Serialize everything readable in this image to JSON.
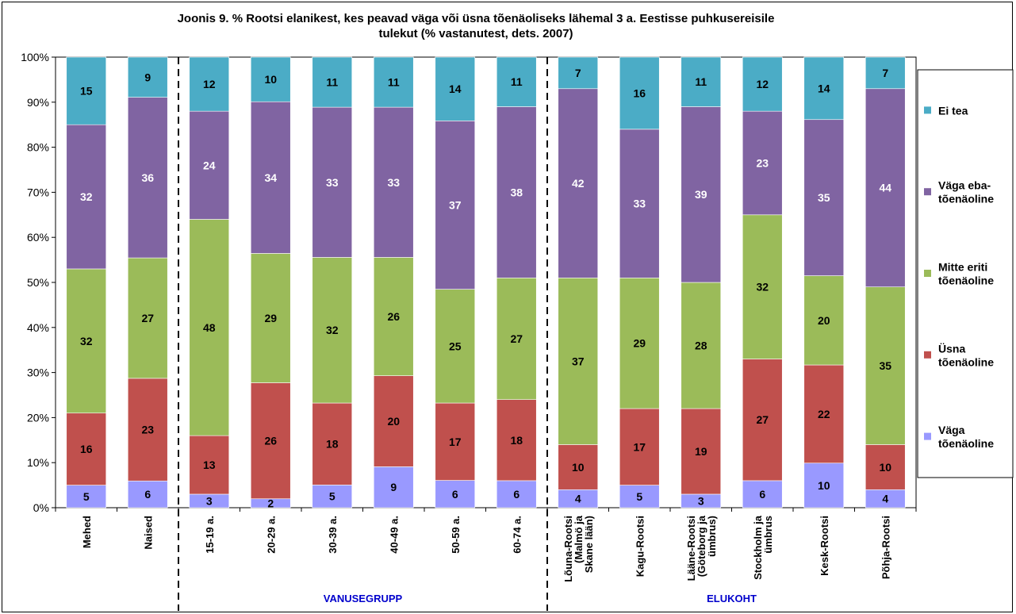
{
  "chart_data": {
    "type": "bar",
    "stacked": true,
    "percent_stacked": true,
    "title_lines": [
      "Joonis 9. % Rootsi elanikest, kes peavad väga või üsna tõenäoliseks lähemal 3 a. Eestisse puhkusereisile",
      "tulekut (% vastanutest, dets. 2007)"
    ],
    "ylim": [
      0,
      100
    ],
    "yticks": [
      "0%",
      "10%",
      "20%",
      "30%",
      "40%",
      "50%",
      "60%",
      "70%",
      "80%",
      "90%",
      "100%"
    ],
    "categories": [
      [
        "Mehed"
      ],
      [
        "Naised"
      ],
      [
        "15-19 a."
      ],
      [
        "20-29 a."
      ],
      [
        "30-39 a."
      ],
      [
        "40-49 a."
      ],
      [
        "50-59 a."
      ],
      [
        "60-74 a."
      ],
      [
        "Lõuna-Rootsi",
        "(Malmö ja",
        "Skane lään)"
      ],
      [
        "Kagu-Rootsi"
      ],
      [
        "Lääne-Rootsi",
        "(Göteborg ja",
        "ümbrus)"
      ],
      [
        "Stockholm ja",
        "ümbrus"
      ],
      [
        "Kesk-Rootsi"
      ],
      [
        "Põhja-Rootsi"
      ]
    ],
    "series": [
      {
        "name": "Väga tõenäoline",
        "legend_lines": [
          "Väga",
          "tõenäoline"
        ],
        "color": "#9999ff",
        "label_color": "#000000",
        "values": [
          5,
          6,
          3,
          2,
          5,
          9,
          6,
          6,
          4,
          5,
          3,
          6,
          10,
          4
        ]
      },
      {
        "name": "Üsna tõenäoline",
        "legend_lines": [
          "Üsna",
          "tõenäoline"
        ],
        "color": "#c0504d",
        "label_color": "#000000",
        "values": [
          16,
          23,
          13,
          26,
          18,
          20,
          17,
          18,
          10,
          17,
          19,
          27,
          22,
          10
        ]
      },
      {
        "name": "Mitte eriti tõenäoline",
        "legend_lines": [
          "Mitte eriti",
          "tõenäoline"
        ],
        "color": "#9bbb59",
        "label_color": "#000000",
        "values": [
          32,
          27,
          48,
          29,
          32,
          26,
          25,
          27,
          37,
          29,
          28,
          32,
          20,
          35
        ]
      },
      {
        "name": "Väga ebatõenäoline",
        "legend_lines": [
          "Väga eba-",
          "tõenäoline"
        ],
        "color": "#8064a2",
        "label_color": "#ffffff",
        "values": [
          32,
          36,
          24,
          34,
          33,
          33,
          37,
          38,
          42,
          33,
          39,
          23,
          35,
          44
        ]
      },
      {
        "name": "Ei tea",
        "legend_lines": [
          "Ei tea"
        ],
        "color": "#4bacc6",
        "label_color": "#000000",
        "values": [
          15,
          9,
          12,
          10,
          11,
          11,
          14,
          11,
          7,
          16,
          11,
          12,
          14,
          7
        ]
      }
    ],
    "groups": [
      {
        "label": "VANUSEGRUPP",
        "from": 2,
        "to": 7
      },
      {
        "label": "ELUKOHT",
        "from": 8,
        "to": 13
      }
    ],
    "separators_after": [
      1,
      7
    ],
    "legend_placement": "right",
    "grid": false
  }
}
